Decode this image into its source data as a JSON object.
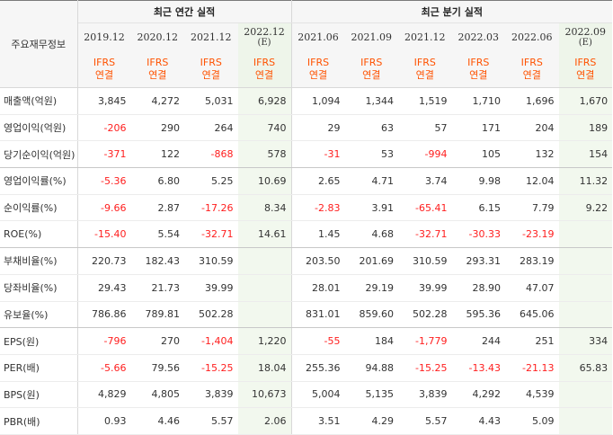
{
  "table": {
    "corner_label": "주요재무정보",
    "groups": [
      {
        "label": "최근 연간 실적",
        "span": 4
      },
      {
        "label": "최근 분기 실적",
        "span": 6
      }
    ],
    "periods": [
      {
        "line1": "2019.12",
        "line2": "",
        "estimate": false
      },
      {
        "line1": "2020.12",
        "line2": "",
        "estimate": false
      },
      {
        "line1": "2021.12",
        "line2": "",
        "estimate": false
      },
      {
        "line1": "2022.12",
        "line2": "(E)",
        "estimate": true
      },
      {
        "line1": "2021.06",
        "line2": "",
        "estimate": false
      },
      {
        "line1": "2021.09",
        "line2": "",
        "estimate": false
      },
      {
        "line1": "2021.12",
        "line2": "",
        "estimate": false
      },
      {
        "line1": "2022.03",
        "line2": "",
        "estimate": false
      },
      {
        "line1": "2022.06",
        "line2": "",
        "estimate": false
      },
      {
        "line1": "2022.09",
        "line2": "(E)",
        "estimate": true
      }
    ],
    "standard": {
      "line1": "IFRS",
      "line2": "연결"
    },
    "rows": [
      {
        "label": "매출액(억원)",
        "values": [
          "3,845",
          "4,272",
          "5,031",
          "6,928",
          "1,094",
          "1,344",
          "1,519",
          "1,710",
          "1,696",
          "1,670"
        ]
      },
      {
        "label": "영업이익(억원)",
        "values": [
          "-206",
          "290",
          "264",
          "740",
          "29",
          "63",
          "57",
          "171",
          "204",
          "189"
        ]
      },
      {
        "label": "당기순이익(억원)",
        "values": [
          "-371",
          "122",
          "-868",
          "578",
          "-31",
          "53",
          "-994",
          "105",
          "132",
          "154"
        ]
      },
      {
        "label": "영업이익률(%)",
        "values": [
          "-5.36",
          "6.80",
          "5.25",
          "10.69",
          "2.65",
          "4.71",
          "3.74",
          "9.98",
          "12.04",
          "11.32"
        ]
      },
      {
        "label": "순이익률(%)",
        "values": [
          "-9.66",
          "2.87",
          "-17.26",
          "8.34",
          "-2.83",
          "3.91",
          "-65.41",
          "6.15",
          "7.79",
          "9.22"
        ]
      },
      {
        "label": "ROE(%)",
        "values": [
          "-15.40",
          "5.54",
          "-32.71",
          "14.61",
          "1.45",
          "4.68",
          "-32.71",
          "-30.33",
          "-23.19",
          ""
        ]
      },
      {
        "label": "부채비율(%)",
        "values": [
          "220.73",
          "182.43",
          "310.59",
          "",
          "203.50",
          "201.69",
          "310.59",
          "293.31",
          "283.19",
          ""
        ]
      },
      {
        "label": "당좌비율(%)",
        "values": [
          "29.43",
          "21.73",
          "39.99",
          "",
          "28.01",
          "29.19",
          "39.99",
          "28.90",
          "47.07",
          ""
        ]
      },
      {
        "label": "유보율(%)",
        "values": [
          "786.86",
          "789.81",
          "502.28",
          "",
          "831.01",
          "859.60",
          "502.28",
          "595.36",
          "645.06",
          ""
        ]
      },
      {
        "label": "EPS(원)",
        "values": [
          "-796",
          "270",
          "-1,404",
          "1,220",
          "-55",
          "184",
          "-1,779",
          "244",
          "251",
          "334"
        ]
      },
      {
        "label": "PER(배)",
        "values": [
          "-5.66",
          "79.56",
          "-15.25",
          "18.04",
          "255.36",
          "94.88",
          "-15.25",
          "-13.43",
          "-21.13",
          "65.83"
        ]
      },
      {
        "label": "BPS(원)",
        "values": [
          "4,829",
          "4,805",
          "3,839",
          "10,673",
          "5,004",
          "5,135",
          "3,839",
          "4,292",
          "4,539",
          ""
        ]
      },
      {
        "label": "PBR(배)",
        "values": [
          "0.93",
          "4.46",
          "5.57",
          "2.06",
          "3.51",
          "4.29",
          "5.57",
          "4.43",
          "5.09",
          ""
        ]
      }
    ],
    "group_ends": [
      2,
      5,
      8
    ],
    "colors": {
      "negative": "#ff1e1e",
      "standard": "#ff5200",
      "estimate_bg": "#f2f8ee"
    }
  }
}
